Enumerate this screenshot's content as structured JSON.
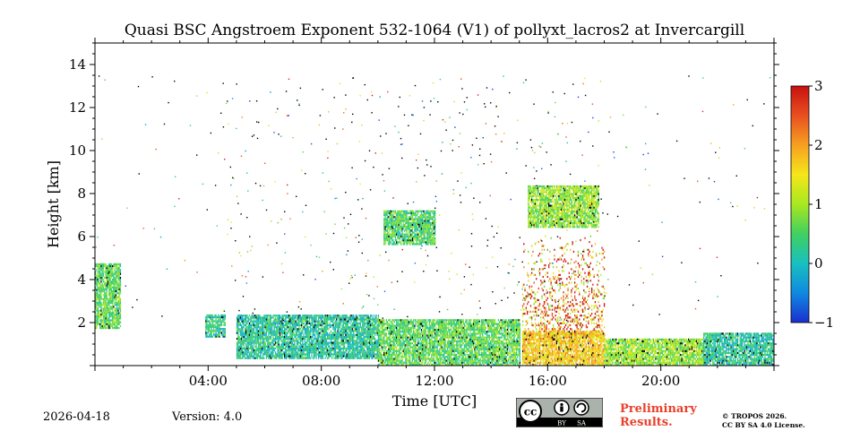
{
  "chart_data": {
    "type": "heatmap",
    "title": "Quasi BSC Angstroem Exponent 532-1064 (V1) of pollyxt_lacros2 at Invercargill",
    "xlabel": "Time [UTC]",
    "ylabel": "Height [km]",
    "xlim_hours": [
      0,
      24
    ],
    "ylim_km": [
      0,
      15
    ],
    "x_ticks": [
      {
        "hour": 4,
        "label": "04:00"
      },
      {
        "hour": 8,
        "label": "08:00"
      },
      {
        "hour": 12,
        "label": "12:00"
      },
      {
        "hour": 16,
        "label": "16:00"
      },
      {
        "hour": 20,
        "label": "20:00"
      }
    ],
    "y_ticks": [
      {
        "km": 2,
        "label": "2"
      },
      {
        "km": 4,
        "label": "4"
      },
      {
        "km": 6,
        "label": "6"
      },
      {
        "km": 8,
        "label": "8"
      },
      {
        "km": 10,
        "label": "10"
      },
      {
        "km": 12,
        "label": "12"
      },
      {
        "km": 14,
        "label": "14"
      }
    ],
    "colorbar": {
      "range": [
        -1,
        3
      ],
      "ticks": [
        {
          "value": -1,
          "label": "−1"
        },
        {
          "value": 0,
          "label": "0"
        },
        {
          "value": 1,
          "label": "1"
        },
        {
          "value": 2,
          "label": "2"
        },
        {
          "value": 3,
          "label": "3"
        }
      ],
      "colormap": [
        "#1a2fd0",
        "#1089e0",
        "#18c0c0",
        "#40d060",
        "#a8e820",
        "#f5e61a",
        "#f6a020",
        "#e85020",
        "#c81010"
      ]
    },
    "regions": [
      {
        "name": "low-layer-pre-dawn",
        "t0": 0.0,
        "t1": 0.9,
        "h0": 1.7,
        "h1": 4.7,
        "value": 0.6
      },
      {
        "name": "low-layer-0530",
        "t0": 3.9,
        "t1": 4.6,
        "h0": 1.3,
        "h1": 2.3,
        "value": 0.3
      },
      {
        "name": "boundary-layer-morning",
        "t0": 5.0,
        "t1": 10.0,
        "h0": 0.3,
        "h1": 2.3,
        "value": 0.2
      },
      {
        "name": "boundary-layer-midday",
        "t0": 10.0,
        "t1": 15.0,
        "h0": 0.0,
        "h1": 2.1,
        "value": 0.6
      },
      {
        "name": "cloud-1030",
        "t0": 10.2,
        "t1": 12.0,
        "h0": 5.6,
        "h1": 7.2,
        "value": 0.5
      },
      {
        "name": "noisy-aerosol-1500-1800",
        "t0": 15.1,
        "t1": 18.0,
        "h0": 1.2,
        "h1": 6.0,
        "value": 2.2
      },
      {
        "name": "boundary-layer-afternoon",
        "t0": 15.1,
        "t1": 18.0,
        "h0": 0.0,
        "h1": 1.6,
        "value": 1.7
      },
      {
        "name": "cloud-1500-1800",
        "t0": 15.3,
        "t1": 17.8,
        "h0": 6.4,
        "h1": 8.3,
        "value": 0.9
      },
      {
        "name": "boundary-layer-evening",
        "t0": 18.0,
        "t1": 21.5,
        "h0": 0.0,
        "h1": 1.2,
        "value": 0.9
      },
      {
        "name": "boundary-layer-night",
        "t0": 21.5,
        "t1": 24.0,
        "h0": 0.0,
        "h1": 1.5,
        "value": 0.2
      }
    ]
  },
  "footer": {
    "date": "2026-04-18",
    "version": "Version: 4.0",
    "preliminary": "Preliminary Results.",
    "copyright_line1": "© TROPOS 2026.",
    "copyright_line2": "CC BY SA 4.0 License.",
    "cc_by": "BY",
    "cc_sa": "SA"
  }
}
